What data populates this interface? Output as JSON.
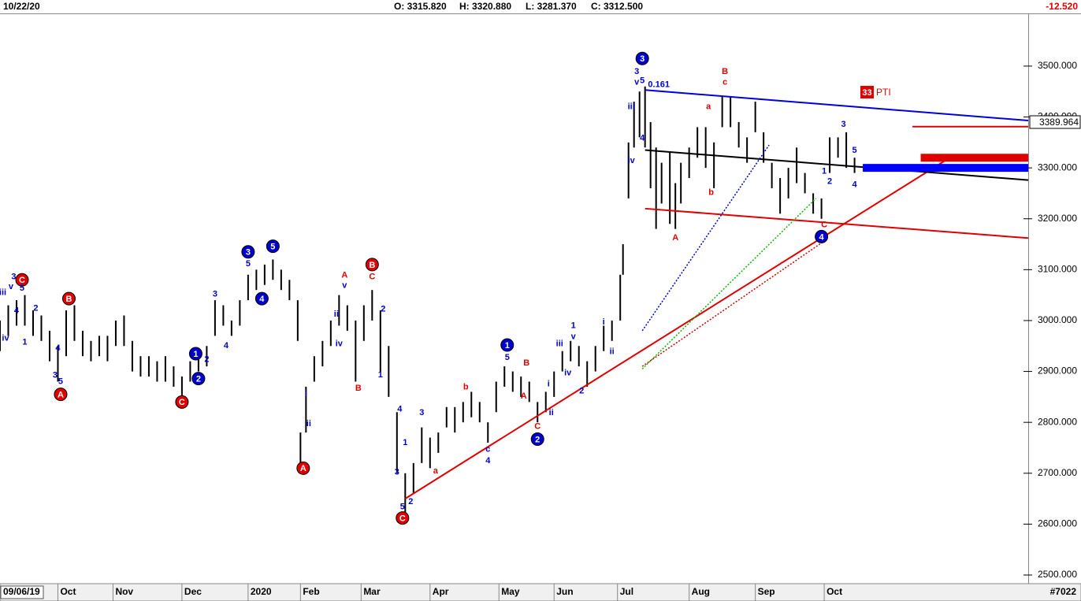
{
  "chart_data": {
    "type": "ohlc",
    "header": {
      "date": "10/22/20",
      "open": "O: 3315.820",
      "high": "H: 3320.880",
      "low": "L: 3281.370",
      "close": "C: 3312.500",
      "change": "-12.520"
    },
    "start_date": "09/06/19",
    "chart_id": "#7022",
    "pti": {
      "score": 33,
      "label": "PTI"
    },
    "last_price": 3389.964,
    "bar_color": "#000000",
    "xlim": [
      0,
      373
    ],
    "ylim": [
      2483,
      3602
    ],
    "xticks": [
      {
        "value": 21,
        "label": "Oct"
      },
      {
        "value": 41,
        "label": "Nov"
      },
      {
        "value": 66,
        "label": "Dec"
      },
      {
        "value": 90,
        "label": "2020"
      },
      {
        "value": 109,
        "label": "Feb"
      },
      {
        "value": 131,
        "label": "Mar"
      },
      {
        "value": 156,
        "label": "Apr"
      },
      {
        "value": 181,
        "label": "May"
      },
      {
        "value": 201,
        "label": "Jun"
      },
      {
        "value": 224,
        "label": "Jul"
      },
      {
        "value": 250,
        "label": "Aug"
      },
      {
        "value": 274,
        "label": "Sep"
      },
      {
        "value": 299,
        "label": "Oct"
      }
    ],
    "yticks": [
      {
        "value": 2500,
        "label": "2500.000"
      },
      {
        "value": 2600,
        "label": "2600.000"
      },
      {
        "value": 2700,
        "label": "2700.000"
      },
      {
        "value": 2800,
        "label": "2800.000"
      },
      {
        "value": 2900,
        "label": "2900.000"
      },
      {
        "value": 3000,
        "label": "3000.000"
      },
      {
        "value": 3100,
        "label": "3100.000"
      },
      {
        "value": 3200,
        "label": "3200.000"
      },
      {
        "value": 3300,
        "label": "3300.000"
      },
      {
        "value": 3400,
        "label": "3400.000"
      },
      {
        "value": 3500,
        "label": "3500.000"
      }
    ],
    "x": [
      0,
      3,
      6,
      9,
      12,
      15,
      18,
      21,
      24,
      27,
      30,
      33,
      36,
      39,
      42,
      45,
      48,
      51,
      54,
      57,
      60,
      63,
      66,
      69,
      72,
      75,
      78,
      81,
      84,
      87,
      90,
      93,
      96,
      99,
      102,
      105,
      108,
      109,
      111,
      114,
      117,
      120,
      123,
      126,
      129,
      132,
      135,
      138,
      141,
      144,
      147,
      150,
      153,
      156,
      159,
      162,
      165,
      168,
      171,
      174,
      177,
      180,
      183,
      186,
      189,
      192,
      195,
      198,
      201,
      204,
      207,
      210,
      213,
      216,
      219,
      222,
      225,
      226,
      228,
      230,
      232,
      234,
      236,
      238,
      240,
      243,
      245,
      247,
      250,
      253,
      256,
      259,
      262,
      265,
      268,
      271,
      274,
      277,
      280,
      283,
      286,
      289,
      292,
      295,
      298,
      301,
      304,
      307,
      310
    ],
    "high": [
      3000,
      3030,
      3040,
      3050,
      3020,
      3010,
      2980,
      2950,
      3020,
      3030,
      2980,
      2960,
      2970,
      2970,
      3000,
      3010,
      2960,
      2930,
      2930,
      2920,
      2930,
      2910,
      2890,
      2920,
      2940,
      2950,
      3040,
      3030,
      3000,
      3040,
      3090,
      3100,
      3110,
      3120,
      3100,
      3080,
      3040,
      2780,
      2870,
      2930,
      2960,
      3000,
      3050,
      3030,
      3000,
      3030,
      3060,
      3020,
      2950,
      2820,
      2700,
      2720,
      2790,
      2770,
      2780,
      2830,
      2830,
      2840,
      2860,
      2840,
      2800,
      2880,
      2910,
      2900,
      2890,
      2880,
      2840,
      2860,
      2900,
      2940,
      2960,
      2950,
      2920,
      2950,
      2990,
      3000,
      3090,
      3150,
      3350,
      3430,
      3450,
      3460,
      3390,
      3340,
      3310,
      3330,
      3270,
      3310,
      3340,
      3380,
      3380,
      3350,
      3440,
      3440,
      3390,
      3360,
      3430,
      3370,
      3310,
      3280,
      3300,
      3340,
      3290,
      3250,
      3240,
      3360,
      3360,
      3370,
      3320
    ],
    "low": [
      2940,
      2970,
      2990,
      2990,
      2970,
      2960,
      2920,
      2880,
      2930,
      2960,
      2930,
      2920,
      2930,
      2920,
      2950,
      2950,
      2900,
      2890,
      2890,
      2880,
      2880,
      2870,
      2850,
      2880,
      2900,
      2910,
      2970,
      2990,
      2970,
      2990,
      3040,
      3060,
      3070,
      3080,
      3060,
      3040,
      2960,
      2710,
      2780,
      2880,
      2910,
      2950,
      2990,
      2980,
      2880,
      2960,
      3000,
      2900,
      2850,
      2700,
      2620,
      2660,
      2720,
      2710,
      2740,
      2790,
      2780,
      2800,
      2810,
      2800,
      2760,
      2820,
      2870,
      2860,
      2850,
      2840,
      2800,
      2820,
      2850,
      2900,
      2920,
      2910,
      2870,
      2900,
      2940,
      2960,
      3000,
      3090,
      3240,
      3340,
      3360,
      3340,
      3260,
      3180,
      3230,
      3190,
      3180,
      3230,
      3280,
      3320,
      3300,
      3260,
      3380,
      3380,
      3340,
      3310,
      3370,
      3310,
      3260,
      3210,
      3240,
      3270,
      3250,
      3210,
      3200,
      3290,
      3320,
      3300,
      3290
    ],
    "lines": [
      {
        "x": [
          147,
          346
        ],
        "y": [
          2650,
          3325
        ],
        "color": "#e00000",
        "style": "solid"
      },
      {
        "x": [
          234,
          373
        ],
        "y": [
          3453,
          3393
        ],
        "color": "#0000dd",
        "style": "solid"
      },
      {
        "x": [
          234,
          373
        ],
        "y": [
          3335,
          3276
        ],
        "color": "#000000",
        "style": "solid"
      },
      {
        "x": [
          234,
          373
        ],
        "y": [
          3220,
          3162
        ],
        "color": "#e00000",
        "style": "solid"
      },
      {
        "x": [
          331,
          373
        ],
        "y": [
          3381,
          3381
        ],
        "color": "#e00000",
        "style": "solid"
      },
      {
        "x": [
          313,
          373
        ],
        "y": [
          3300,
          3300
        ],
        "color": "#0000ff",
        "style": "band"
      },
      {
        "x": [
          334,
          373
        ],
        "y": [
          3320,
          3320
        ],
        "color": "#e00000",
        "style": "band"
      },
      {
        "x": [
          233,
          279
        ],
        "y": [
          2980,
          3345
        ],
        "color": "#0000cc",
        "style": "dotted"
      },
      {
        "x": [
          233,
          296
        ],
        "y": [
          2905,
          3240
        ],
        "color": "#00bb00",
        "style": "dotted"
      },
      {
        "x": [
          233,
          300
        ],
        "y": [
          2910,
          3160
        ],
        "color": "#cc0000",
        "style": "dotted"
      }
    ],
    "labels": [
      {
        "text": "C",
        "x": 8,
        "y": 3080,
        "color": "#e00000",
        "circle": true
      },
      {
        "text": "A",
        "x": 22,
        "y": 2855,
        "color": "#e00000",
        "circle": true
      },
      {
        "text": "B",
        "x": 25,
        "y": 3043,
        "color": "#e00000",
        "circle": true
      },
      {
        "text": "C",
        "x": 66,
        "y": 2840,
        "color": "#e00000",
        "circle": true
      },
      {
        "text": "1",
        "x": 71,
        "y": 2935,
        "color": "#0000cc",
        "circle": true
      },
      {
        "text": "2",
        "x": 72,
        "y": 2886,
        "color": "#0000cc",
        "circle": true
      },
      {
        "text": "3",
        "x": 90,
        "y": 3135,
        "color": "#0000cc",
        "circle": true
      },
      {
        "text": "5",
        "x": 99,
        "y": 3146,
        "color": "#0000cc",
        "circle": true
      },
      {
        "text": "4",
        "x": 95,
        "y": 3043,
        "color": "#0000cc",
        "circle": true
      },
      {
        "text": "A",
        "x": 110,
        "y": 2710,
        "color": "#e00000",
        "circle": true
      },
      {
        "text": "B",
        "x": 135,
        "y": 3110,
        "color": "#e00000",
        "circle": true
      },
      {
        "text": "C",
        "x": 146,
        "y": 2612,
        "color": "#e00000",
        "circle": true
      },
      {
        "text": "1",
        "x": 184,
        "y": 2952,
        "color": "#0000cc",
        "circle": true
      },
      {
        "text": "2",
        "x": 195,
        "y": 2767,
        "color": "#0000cc",
        "circle": true
      },
      {
        "text": "3",
        "x": 233,
        "y": 3515,
        "color": "#0000cc",
        "circle": true
      },
      {
        "text": "4",
        "x": 298,
        "y": 3165,
        "color": "#0000cc",
        "circle": true
      },
      {
        "text": "iii",
        "x": 1,
        "y": 3055,
        "color": "#0000cc",
        "circle": false
      },
      {
        "text": "v",
        "x": 4,
        "y": 3066,
        "color": "#0000cc",
        "circle": false
      },
      {
        "text": "3",
        "x": 5,
        "y": 3086,
        "color": "#0000cc",
        "circle": false
      },
      {
        "text": "4",
        "x": 6,
        "y": 3019,
        "color": "#0000cc",
        "circle": false
      },
      {
        "text": "5",
        "x": 8,
        "y": 3063,
        "color": "#0000cc",
        "circle": false
      },
      {
        "text": "iv",
        "x": 2,
        "y": 2965,
        "color": "#0000cc",
        "circle": false
      },
      {
        "text": "1",
        "x": 9,
        "y": 2957,
        "color": "#0000cc",
        "circle": false
      },
      {
        "text": "2",
        "x": 13,
        "y": 3024,
        "color": "#0000cc",
        "circle": false
      },
      {
        "text": "4",
        "x": 21,
        "y": 2946,
        "color": "#0000cc",
        "circle": false
      },
      {
        "text": "3",
        "x": 20,
        "y": 2892,
        "color": "#0000cc",
        "circle": false
      },
      {
        "text": "5",
        "x": 22,
        "y": 2880,
        "color": "#0000cc",
        "circle": false
      },
      {
        "text": "2",
        "x": 75,
        "y": 2923,
        "color": "#0000cc",
        "circle": false
      },
      {
        "text": "3",
        "x": 78,
        "y": 3052,
        "color": "#0000cc",
        "circle": false
      },
      {
        "text": "4",
        "x": 82,
        "y": 2950,
        "color": "#0000cc",
        "circle": false
      },
      {
        "text": "5",
        "x": 90,
        "y": 3111,
        "color": "#0000cc",
        "circle": false
      },
      {
        "text": "A",
        "x": 125,
        "y": 3089,
        "color": "#e00000",
        "circle": false
      },
      {
        "text": "v",
        "x": 125,
        "y": 3069,
        "color": "#0000cc",
        "circle": false
      },
      {
        "text": "ii",
        "x": 122,
        "y": 3012,
        "color": "#0000cc",
        "circle": false
      },
      {
        "text": "iv",
        "x": 123,
        "y": 2954,
        "color": "#0000cc",
        "circle": false
      },
      {
        "text": "C",
        "x": 135,
        "y": 3086,
        "color": "#e00000",
        "circle": false
      },
      {
        "text": "2",
        "x": 139,
        "y": 3022,
        "color": "#0000cc",
        "circle": false
      },
      {
        "text": "1",
        "x": 138,
        "y": 2893,
        "color": "#0000cc",
        "circle": false
      },
      {
        "text": "B",
        "x": 130,
        "y": 2867,
        "color": "#e00000",
        "circle": false
      },
      {
        "text": "i",
        "x": 111,
        "y": 2856,
        "color": "#0000cc",
        "circle": false
      },
      {
        "text": "ii",
        "x": 112,
        "y": 2797,
        "color": "#0000cc",
        "circle": false
      },
      {
        "text": "4",
        "x": 145,
        "y": 2826,
        "color": "#0000cc",
        "circle": false
      },
      {
        "text": "3",
        "x": 153,
        "y": 2819,
        "color": "#0000cc",
        "circle": false
      },
      {
        "text": "1",
        "x": 147,
        "y": 2760,
        "color": "#0000cc",
        "circle": false
      },
      {
        "text": "3",
        "x": 144,
        "y": 2702,
        "color": "#0000cc",
        "circle": false
      },
      {
        "text": "5",
        "x": 146,
        "y": 2634,
        "color": "#0000cc",
        "circle": false
      },
      {
        "text": "2",
        "x": 149,
        "y": 2644,
        "color": "#0000cc",
        "circle": false
      },
      {
        "text": "a",
        "x": 158,
        "y": 2704,
        "color": "#e00000",
        "circle": false
      },
      {
        "text": "b",
        "x": 169,
        "y": 2869,
        "color": "#e00000",
        "circle": false
      },
      {
        "text": "c",
        "x": 177,
        "y": 2747,
        "color": "#0000cc",
        "circle": false
      },
      {
        "text": "4",
        "x": 177,
        "y": 2724,
        "color": "#0000cc",
        "circle": false
      },
      {
        "text": "5",
        "x": 184,
        "y": 2927,
        "color": "#0000cc",
        "circle": false
      },
      {
        "text": "B",
        "x": 191,
        "y": 2916,
        "color": "#e00000",
        "circle": false
      },
      {
        "text": "A",
        "x": 190,
        "y": 2851,
        "color": "#e00000",
        "circle": false
      },
      {
        "text": "C",
        "x": 195,
        "y": 2792,
        "color": "#e00000",
        "circle": false
      },
      {
        "text": "iii",
        "x": 203,
        "y": 2954,
        "color": "#0000cc",
        "circle": false
      },
      {
        "text": "iv",
        "x": 206,
        "y": 2897,
        "color": "#0000cc",
        "circle": false
      },
      {
        "text": "1",
        "x": 208,
        "y": 2990,
        "color": "#0000cc",
        "circle": false
      },
      {
        "text": "v",
        "x": 208,
        "y": 2968,
        "color": "#0000cc",
        "circle": false
      },
      {
        "text": "i",
        "x": 199,
        "y": 2875,
        "color": "#0000cc",
        "circle": false
      },
      {
        "text": "ii",
        "x": 200,
        "y": 2819,
        "color": "#0000cc",
        "circle": false
      },
      {
        "text": "2",
        "x": 211,
        "y": 2861,
        "color": "#0000cc",
        "circle": false
      },
      {
        "text": "i",
        "x": 219,
        "y": 2997,
        "color": "#0000cc",
        "circle": false
      },
      {
        "text": "ii",
        "x": 222,
        "y": 2939,
        "color": "#0000cc",
        "circle": false
      },
      {
        "text": "3",
        "x": 231,
        "y": 3489,
        "color": "#0000cc",
        "circle": false
      },
      {
        "text": "v",
        "x": 231,
        "y": 3468,
        "color": "#0000cc",
        "circle": false
      },
      {
        "text": "5",
        "x": 233,
        "y": 3471,
        "color": "#0000cc",
        "circle": false
      },
      {
        "text": "0.161",
        "x": 239,
        "y": 3463,
        "color": "#0000cc",
        "circle": false
      },
      {
        "text": "iii",
        "x": 229,
        "y": 3420,
        "color": "#0000cc",
        "circle": false
      },
      {
        "text": "4",
        "x": 233,
        "y": 3358,
        "color": "#0000cc",
        "circle": false
      },
      {
        "text": "iv",
        "x": 229,
        "y": 3314,
        "color": "#0000cc",
        "circle": false
      },
      {
        "text": "A",
        "x": 245,
        "y": 3162,
        "color": "#e00000",
        "circle": false
      },
      {
        "text": "a",
        "x": 257,
        "y": 3420,
        "color": "#e00000",
        "circle": false
      },
      {
        "text": "b",
        "x": 258,
        "y": 3251,
        "color": "#e00000",
        "circle": false
      },
      {
        "text": "B",
        "x": 263,
        "y": 3489,
        "color": "#e00000",
        "circle": false
      },
      {
        "text": "c",
        "x": 263,
        "y": 3468,
        "color": "#e00000",
        "circle": false
      },
      {
        "text": "C",
        "x": 299,
        "y": 3188,
        "color": "#e00000",
        "circle": false
      },
      {
        "text": "1",
        "x": 299,
        "y": 3293,
        "color": "#0000cc",
        "circle": false
      },
      {
        "text": "2",
        "x": 301,
        "y": 3273,
        "color": "#0000cc",
        "circle": false
      },
      {
        "text": "3",
        "x": 306,
        "y": 3385,
        "color": "#0000cc",
        "circle": false
      },
      {
        "text": "5",
        "x": 310,
        "y": 3334,
        "color": "#0000cc",
        "circle": false
      },
      {
        "text": "4",
        "x": 310,
        "y": 3267,
        "color": "#0000cc",
        "circle": false
      }
    ]
  }
}
